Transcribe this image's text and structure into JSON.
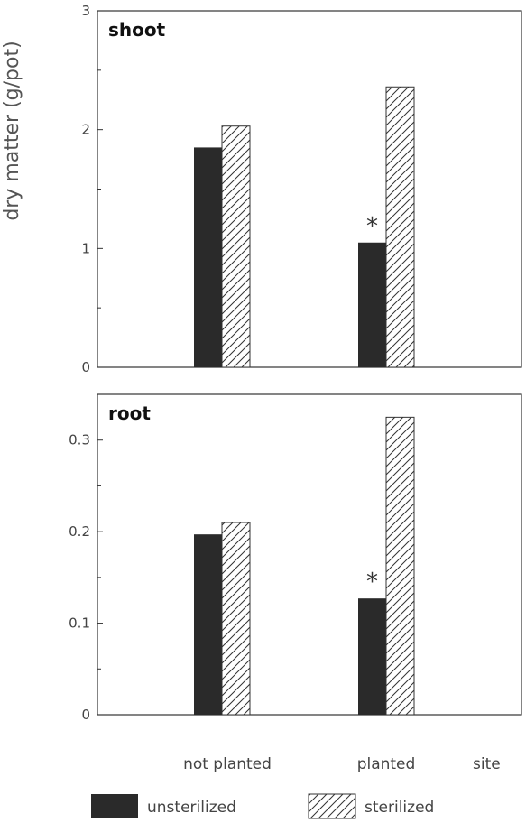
{
  "chart_data": [
    {
      "type": "bar",
      "title": "shoot",
      "ylabel": "dry matter (g/pot)",
      "xlabel": "site",
      "categories": [
        "not planted",
        "planted"
      ],
      "ylim": [
        0,
        3
      ],
      "yticks": [
        "0",
        "1",
        "2",
        "3"
      ],
      "series": [
        {
          "name": "unsterilized",
          "values": [
            1.85,
            1.05
          ]
        },
        {
          "name": "sterilized",
          "values": [
            2.03,
            2.36
          ]
        }
      ],
      "annotations": [
        {
          "category": "planted",
          "series": "unsterilized",
          "text": "*"
        }
      ]
    },
    {
      "type": "bar",
      "title": "root",
      "ylabel": "dry matter (g/pot)",
      "xlabel": "site",
      "categories": [
        "not planted",
        "planted"
      ],
      "ylim": [
        0,
        0.35
      ],
      "yticks": [
        "0",
        "0.1",
        "0.2",
        "0.3"
      ],
      "series": [
        {
          "name": "unsterilized",
          "values": [
            0.197,
            0.127
          ]
        },
        {
          "name": "sterilized",
          "values": [
            0.21,
            0.325
          ]
        }
      ],
      "annotations": [
        {
          "category": "planted",
          "series": "unsterilized",
          "text": "*"
        }
      ]
    }
  ],
  "labels": {
    "ylabel": "dry matter (g/pot)",
    "xlabel": "site",
    "categories": [
      "not planted",
      "planted"
    ]
  },
  "legend": {
    "unsterilized": "unsterilized",
    "sterilized": "sterilized"
  },
  "colors": {
    "unsterilized": "#2a2a2a",
    "sterilized_fill": "#ffffff",
    "hatch": "#333333",
    "axis": "#333333"
  }
}
